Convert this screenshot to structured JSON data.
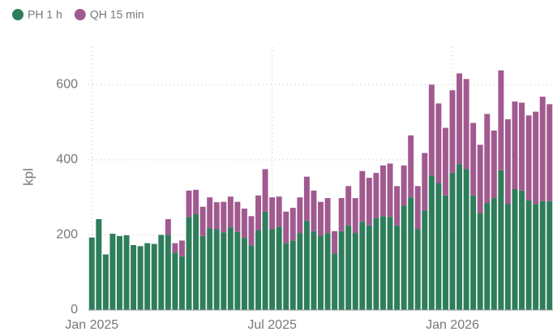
{
  "chart_data": {
    "type": "stacked_bar",
    "ylabel": "kpl",
    "categories": [
      "Jan 2025",
      null,
      null,
      null,
      null,
      null,
      null,
      null,
      null,
      null,
      null,
      null,
      null,
      null,
      null,
      null,
      null,
      null,
      null,
      null,
      null,
      null,
      null,
      null,
      null,
      null,
      "Jul 2025",
      null,
      null,
      null,
      null,
      null,
      null,
      null,
      null,
      null,
      null,
      null,
      null,
      null,
      null,
      null,
      null,
      null,
      null,
      null,
      null,
      null,
      null,
      null,
      null,
      null,
      "Jan 2026",
      null,
      null,
      null,
      null,
      null,
      null,
      null,
      null,
      null,
      null,
      null,
      null,
      null,
      null
    ],
    "series": [
      {
        "name": "PH 1 h",
        "color": "#2e7d5b",
        "values": [
          193,
          242,
          148,
          203,
          197,
          199,
          173,
          170,
          178,
          176,
          200,
          200,
          153,
          143,
          248,
          255,
          197,
          218,
          215,
          207,
          220,
          208,
          192,
          172,
          213,
          262,
          215,
          222,
          178,
          185,
          205,
          238,
          210,
          198,
          205,
          150,
          210,
          225,
          205,
          235,
          225,
          245,
          250,
          248,
          225,
          278,
          300,
          215,
          265,
          358,
          338,
          305,
          365,
          388,
          375,
          305,
          258,
          285,
          298,
          372,
          282,
          322,
          318,
          292,
          282,
          290,
          290
        ]
      },
      {
        "name": "QH 15 min",
        "color": "#a15a8f",
        "values": [
          0,
          0,
          0,
          0,
          0,
          0,
          0,
          0,
          0,
          0,
          0,
          42,
          25,
          42,
          70,
          65,
          78,
          82,
          72,
          81,
          82,
          80,
          78,
          78,
          92,
          113,
          85,
          80,
          84,
          87,
          95,
          117,
          108,
          90,
          93,
          60,
          88,
          105,
          93,
          135,
          127,
          120,
          135,
          142,
          105,
          107,
          165,
          115,
          153,
          242,
          212,
          180,
          220,
          242,
          240,
          193,
          182,
          237,
          180,
          266,
          226,
          233,
          234,
          226,
          246,
          278,
          258
        ]
      }
    ],
    "ylim": [
      0,
      700
    ],
    "yticks": [
      0,
      200,
      400,
      600
    ],
    "grid": true,
    "legend": "top-left"
  }
}
